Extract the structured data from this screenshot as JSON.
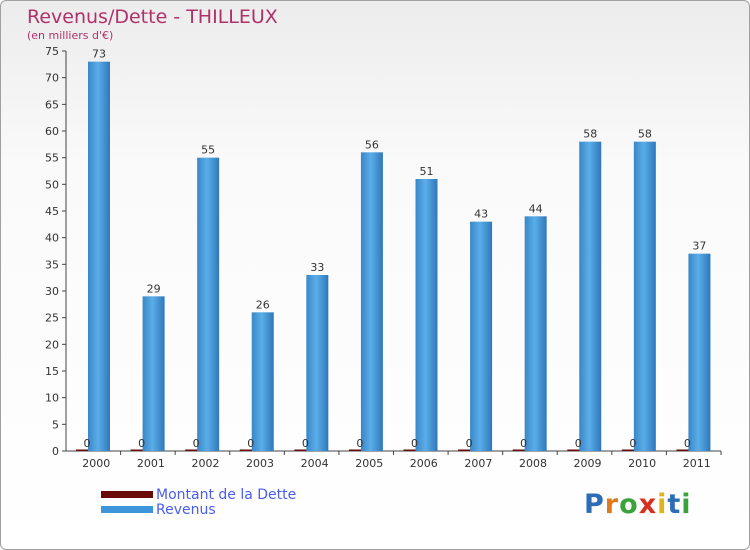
{
  "header": {
    "title": "Revenus/Dette - THILLEUX",
    "subtitle": "(en milliers d'€)"
  },
  "legend": [
    {
      "label": "Montant de la Dette",
      "color": "#6b0a0a"
    },
    {
      "label": "Revenus",
      "color": "#3d95dc"
    }
  ],
  "logo": {
    "text": "Proxiti"
  },
  "chart_data": {
    "type": "bar",
    "title": "Revenus/Dette - THILLEUX",
    "ylabel": "(en milliers d'€)",
    "xlabel": "",
    "ylim": [
      0,
      75
    ],
    "ytick_step": 5,
    "grid": false,
    "legend_position": "bottom-left",
    "categories": [
      "2000",
      "2001",
      "2002",
      "2003",
      "2004",
      "2005",
      "2006",
      "2007",
      "2008",
      "2009",
      "2010",
      "2011"
    ],
    "series": [
      {
        "name": "Montant de la Dette",
        "color": "#6b0a0a",
        "values": [
          0,
          0,
          0,
          0,
          0,
          0,
          0,
          0,
          0,
          0,
          0,
          0
        ]
      },
      {
        "name": "Revenus",
        "color": "#3d95dc",
        "values": [
          73,
          29,
          55,
          26,
          33,
          56,
          51,
          43,
          44,
          58,
          58,
          37
        ]
      }
    ]
  }
}
